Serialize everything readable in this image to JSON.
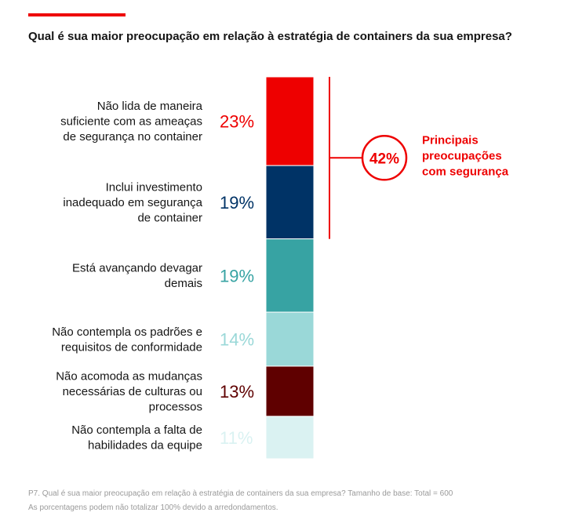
{
  "header": {
    "title": "Qual é sua maior preocupação em relação à estratégia de containers da sua empresa?"
  },
  "chart_data": {
    "type": "bar",
    "orientation": "stacked-vertical",
    "title": "Qual é sua maior preocupação em relação à estratégia de containers da sua empresa?",
    "unit": "%",
    "categories": [
      [
        "Não lida de maneira",
        "suficiente com as ameaças",
        "de segurança no container"
      ],
      [
        "Inclui investimento",
        "inadequado em segurança",
        "de container"
      ],
      [
        "Está avançando devagar",
        "demais"
      ],
      [
        "Não contempla os padrões e",
        "requisitos de conformidade"
      ],
      [
        "Não acomoda as mudanças",
        "necessárias de culturas ou",
        "processos"
      ],
      [
        "Não contempla a falta de",
        "habilidades da equipe"
      ]
    ],
    "values": [
      23,
      19,
      19,
      14,
      13,
      11
    ],
    "value_labels": [
      "23%",
      "19%",
      "19%",
      "14%",
      "13%",
      "11%"
    ],
    "colors": [
      "#ee0000",
      "#003366",
      "#37a3a3",
      "#9ad8d8",
      "#5f0000",
      "#daf2f2"
    ],
    "annotation": {
      "value_label": "42%",
      "text": [
        "Principais",
        "preocupações",
        "com segurança"
      ],
      "covers_segments": 2,
      "color": "#ee0000"
    }
  },
  "footnotes": {
    "line1": "P7. Qual é sua maior preocupação em relação à estratégia de containers da sua empresa? Tamanho de base: Total = 600",
    "line2": "As porcentagens podem não totalizar 100% devido a arredondamentos."
  }
}
